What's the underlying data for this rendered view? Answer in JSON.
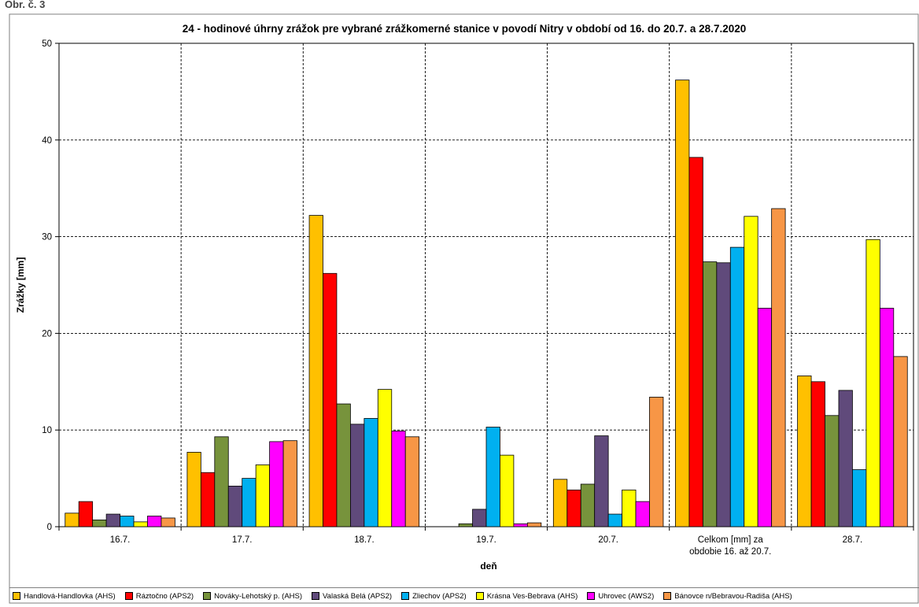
{
  "header_fragment": "Obr. č. 3",
  "chart_data": {
    "type": "bar",
    "title": "24 - hodinové úhrny zrážok pre vybrané zrážkomerné stanice v povodí Nitry v období od 16. do 20.7. a 28.7.2020",
    "xlabel": "deň",
    "ylabel": "Zrážky [mm]",
    "ylim": [
      0,
      50
    ],
    "yticks": [
      0,
      10,
      20,
      30,
      40,
      50
    ],
    "grid": true,
    "legend_position": "bottom",
    "categories": [
      "16.7.",
      "17.7.",
      "18.7.",
      "19.7.",
      "20.7.",
      "Celkom [mm] za obdobie 16. až 20.7.",
      "28.7."
    ],
    "category_lines": [
      [
        "16.7."
      ],
      [
        "17.7."
      ],
      [
        "18.7."
      ],
      [
        "19.7."
      ],
      [
        "20.7."
      ],
      [
        "Celkom [mm] za",
        "obdobie 16. až 20.7."
      ],
      [
        "28.7."
      ]
    ],
    "series": [
      {
        "name": "Handlová-Handlovka (AHS)",
        "color": "#FFC000",
        "values": [
          1.4,
          7.7,
          32.2,
          0,
          4.9,
          46.2,
          15.6
        ]
      },
      {
        "name": "Ráztočno (APS2)",
        "color": "#FF0000",
        "values": [
          2.6,
          5.6,
          26.2,
          0,
          3.8,
          38.2,
          15.0
        ]
      },
      {
        "name": "Nováky-Lehotský p. (AHS)",
        "color": "#77933C",
        "values": [
          0.7,
          9.3,
          12.7,
          0.3,
          4.4,
          27.4,
          11.5
        ]
      },
      {
        "name": "Valaská Belá (APS2)",
        "color": "#604A7B",
        "values": [
          1.3,
          4.2,
          10.6,
          1.8,
          9.4,
          27.3,
          14.1
        ]
      },
      {
        "name": "Zliechov (APS2)",
        "color": "#00B0F0",
        "values": [
          1.1,
          5.0,
          11.2,
          10.3,
          1.3,
          28.9,
          5.9
        ]
      },
      {
        "name": "Krásna Ves-Bebrava (AHS)",
        "color": "#FFFF00",
        "values": [
          0.5,
          6.4,
          14.2,
          7.4,
          3.8,
          32.1,
          29.7
        ]
      },
      {
        "name": "Uhrovec (AWS2)",
        "color": "#FF00FF",
        "values": [
          1.1,
          8.8,
          9.9,
          0.3,
          2.6,
          22.6,
          22.6
        ]
      },
      {
        "name": "Bánovce n/Bebravou-Radiša (AHS)",
        "color": "#F79646",
        "values": [
          0.9,
          8.9,
          9.3,
          0.4,
          13.4,
          32.9,
          17.6
        ]
      }
    ]
  }
}
